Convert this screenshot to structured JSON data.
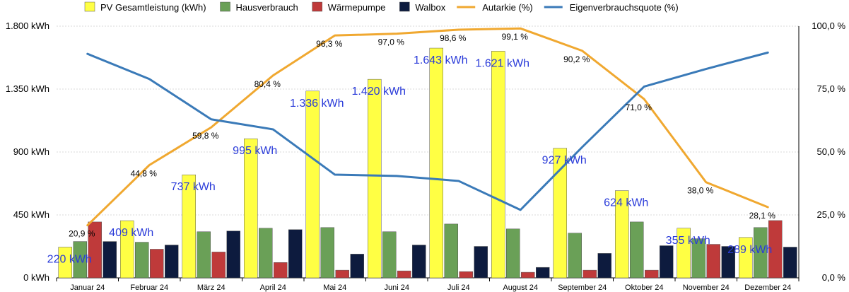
{
  "chart_data": {
    "type": "bar",
    "categories": [
      "Januar 24",
      "Februar 24",
      "März 24",
      "April 24",
      "Mai 24",
      "Juni 24",
      "Juli 24",
      "August 24",
      "September 24",
      "Oktober 24",
      "November 24",
      "Dezember 24"
    ],
    "series": [
      {
        "name": "PV Gesamtleistung (kWh)",
        "kind": "bar",
        "axis": "left",
        "color": "#ffff44",
        "values": [
          220,
          409,
          737,
          995,
          1336,
          1420,
          1643,
          1621,
          927,
          624,
          355,
          289
        ]
      },
      {
        "name": "Hausverbrauch",
        "kind": "bar",
        "axis": "left",
        "color": "#6aa057",
        "values": [
          260,
          255,
          330,
          355,
          360,
          330,
          385,
          350,
          320,
          400,
          280,
          360
        ]
      },
      {
        "name": "Wärmepumpe",
        "kind": "bar",
        "axis": "left",
        "color": "#bf3a3a",
        "values": [
          400,
          205,
          185,
          110,
          55,
          50,
          45,
          40,
          55,
          55,
          240,
          410
        ]
      },
      {
        "name": "Walbox",
        "kind": "bar",
        "axis": "left",
        "color": "#0d1b3e",
        "values": [
          260,
          235,
          335,
          345,
          170,
          235,
          225,
          75,
          175,
          230,
          225,
          220
        ]
      },
      {
        "name": "Autarkie (%)",
        "kind": "line",
        "axis": "right",
        "color": "#f0a830",
        "values": [
          20.9,
          44.8,
          59.8,
          80.4,
          96.3,
          97.0,
          98.6,
          99.1,
          90.2,
          71.0,
          38.0,
          28.1
        ]
      },
      {
        "name": "Eigenverbrauchsquote (%)",
        "kind": "line",
        "axis": "right",
        "color": "#3a7ab8",
        "values": [
          89,
          79,
          63,
          59,
          41,
          40.5,
          38.5,
          27,
          52,
          76,
          83,
          89.5
        ]
      }
    ],
    "pv_labels": [
      "220 kWh",
      "409 kWh",
      "737 kWh",
      "995 kWh",
      "1.336 kWh",
      "1.420 kWh",
      "1.643 kWh",
      "1.621 kWh",
      "927 kWh",
      "624 kWh",
      "355 kWh",
      "289 kWh"
    ],
    "autarkie_labels": [
      "20,9 %",
      "44,8 %",
      "59,8 %",
      "80,4 %",
      "96,3 %",
      "97,0 %",
      "98,6 %",
      "99,1 %",
      "90,2 %",
      "71,0 %",
      "38,0 %",
      "28,1 %"
    ],
    "y_left": {
      "min": 0,
      "max": 1800,
      "ticks": [
        0,
        450,
        900,
        1350,
        1800
      ],
      "tick_labels": [
        "0 kWh",
        "450 kWh",
        "900 kWh",
        "1.350 kWh",
        "1.800 kWh"
      ]
    },
    "y_right": {
      "min": 0,
      "max": 100,
      "ticks": [
        0,
        25,
        50,
        75,
        100
      ],
      "tick_labels": [
        "0,0 %",
        "25,0 %",
        "50,0 %",
        "75,0 %",
        "100,0 %"
      ]
    },
    "legend_position": "top",
    "grid": true,
    "pv_label_color": "#2a3bd9"
  }
}
